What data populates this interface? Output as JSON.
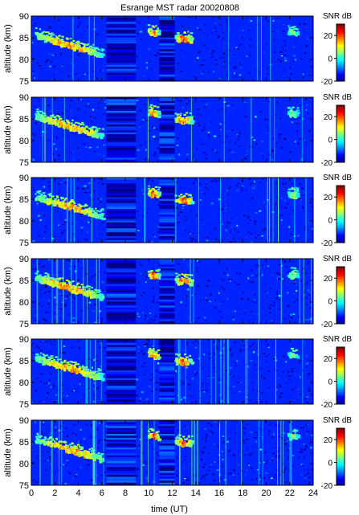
{
  "figure": {
    "title": "Esrange MST radar 20020808",
    "xlabel": "time (UT)",
    "ylabel": "altitude (km)",
    "colorbar_label": "SNR dB"
  },
  "chart_data": {
    "type": "heatmap",
    "title": "Esrange MST radar 20020808",
    "xlabel": "time (UT)",
    "ylabel": "altitude (km)",
    "panel_count": 6,
    "xlim": [
      0,
      24
    ],
    "ylim": [
      75,
      90
    ],
    "x_ticks": [
      0,
      2,
      4,
      6,
      8,
      10,
      12,
      14,
      16,
      18,
      20,
      22,
      24
    ],
    "y_ticks": [
      75,
      80,
      85,
      90
    ],
    "colorbar": {
      "label": "SNR dB",
      "range": [
        -20,
        30
      ],
      "ticks": [
        20,
        0,
        -20
      ],
      "colormap": "jet"
    },
    "data_gaps_UT": [
      [
        6.4,
        8.9
      ],
      [
        10.9,
        12.2
      ]
    ],
    "echo_layers": [
      {
        "start_UT": 0.3,
        "end_UT": 6.0,
        "alt_start_km": 85.5,
        "alt_end_km": 81.0,
        "peak_snr_db": 20
      },
      {
        "start_UT": 9.9,
        "end_UT": 10.8,
        "alt_start_km": 86.5,
        "alt_end_km": 86.0,
        "peak_snr_db": 25
      },
      {
        "start_UT": 12.2,
        "end_UT": 13.6,
        "alt_start_km": 84.8,
        "alt_end_km": 84.6,
        "peak_snr_db": 25
      },
      {
        "start_UT": 21.8,
        "end_UT": 22.6,
        "alt_start_km": 86.2,
        "alt_end_km": 86.0,
        "peak_snr_db": 10
      }
    ]
  }
}
